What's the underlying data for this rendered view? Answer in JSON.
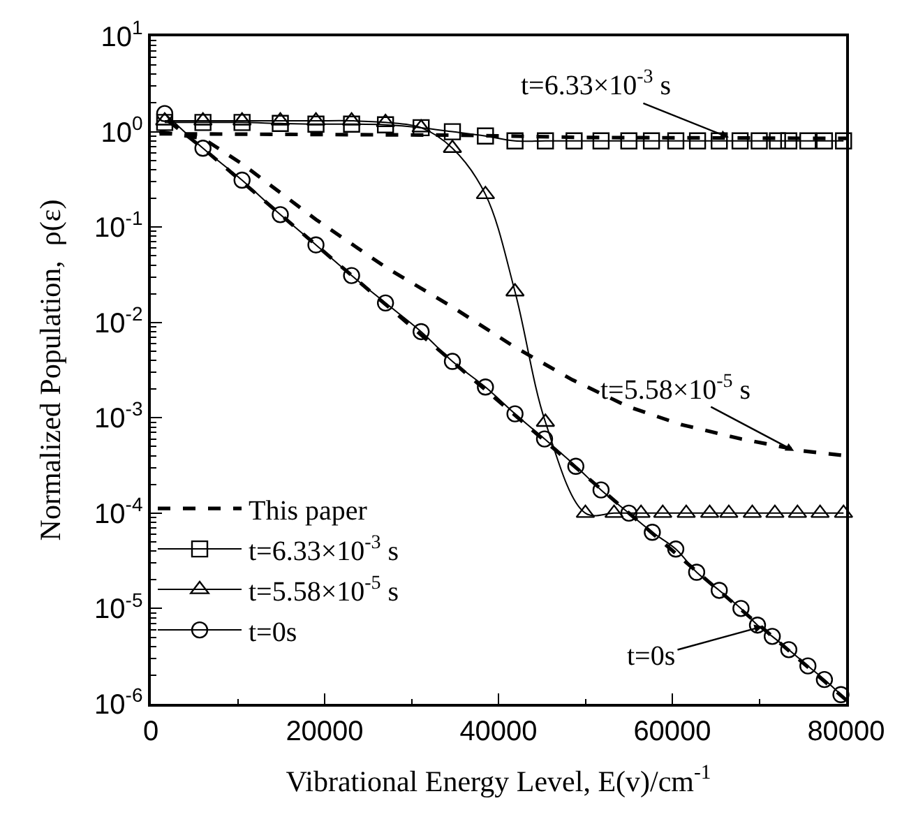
{
  "chart_data": {
    "type": "line",
    "xlabel": "Vibrational Energy Level, E(v)/cm$^{-1}$",
    "ylabel": "Normalized Population,  ρ(ε)",
    "log": "y",
    "legend": "bottom left",
    "grid": false,
    "xlim": [
      0,
      80000
    ],
    "xticks": [
      0,
      {
        "value": 10000,
        "label": null
      },
      20000,
      {
        "value": 30000,
        "label": null
      },
      40000,
      {
        "value": 50000,
        "label": null
      },
      60000,
      {
        "value": 70000,
        "label": null
      },
      80000
    ],
    "ylim": [
      1e-06,
      10
    ],
    "yticks": [
      {
        "value": 1e-06,
        "label": "10$^{-6}$"
      },
      {
        "value": 1e-05,
        "label": "10$^{-5}$"
      },
      {
        "value": 0.0001,
        "label": "10$^{-4}$"
      },
      {
        "value": 0.001,
        "label": "10$^{-3}$"
      },
      {
        "value": 0.01,
        "label": "10$^{-2}$"
      },
      {
        "value": 0.1,
        "label": "10$^{-1}$"
      },
      {
        "value": 1,
        "label": "10$^{0}$"
      },
      {
        "value": 10,
        "label": "10$^{1}$"
      },
      {
        "value": 2e-06,
        "label": null
      },
      {
        "value": 3e-06,
        "label": null
      },
      {
        "value": 4e-06,
        "label": null
      },
      {
        "value": 5e-06,
        "label": null
      },
      {
        "value": 6e-06,
        "label": null
      },
      {
        "value": 7e-06,
        "label": null
      },
      {
        "value": 8e-06,
        "label": null
      },
      {
        "value": 9e-06,
        "label": null
      },
      {
        "value": 2e-05,
        "label": null
      },
      {
        "value": 3e-05,
        "label": null
      },
      {
        "value": 4e-05,
        "label": null
      },
      {
        "value": 5e-05,
        "label": null
      },
      {
        "value": 6e-05,
        "label": null
      },
      {
        "value": 7e-05,
        "label": null
      },
      {
        "value": 8e-05,
        "label": null
      },
      {
        "value": 9e-05,
        "label": null
      },
      {
        "value": 0.0002,
        "label": null
      },
      {
        "value": 0.0003,
        "label": null
      },
      {
        "value": 0.0004,
        "label": null
      },
      {
        "value": 0.0005,
        "label": null
      },
      {
        "value": 0.0006,
        "label": null
      },
      {
        "value": 0.0007,
        "label": null
      },
      {
        "value": 0.0008,
        "label": null
      },
      {
        "value": 0.0009,
        "label": null
      },
      {
        "value": 0.002,
        "label": null
      },
      {
        "value": 0.003,
        "label": null
      },
      {
        "value": 0.004,
        "label": null
      },
      {
        "value": 0.005,
        "label": null
      },
      {
        "value": 0.006,
        "label": null
      },
      {
        "value": 0.007,
        "label": null
      },
      {
        "value": 0.008,
        "label": null
      },
      {
        "value": 0.009,
        "label": null
      },
      {
        "value": 0.02,
        "label": null
      },
      {
        "value": 0.03,
        "label": null
      },
      {
        "value": 0.04,
        "label": null
      },
      {
        "value": 0.05,
        "label": null
      },
      {
        "value": 0.06,
        "label": null
      },
      {
        "value": 0.07,
        "label": null
      },
      {
        "value": 0.08,
        "label": null
      },
      {
        "value": 0.09,
        "label": null
      },
      {
        "value": 0.2,
        "label": null
      },
      {
        "value": 0.3,
        "label": null
      },
      {
        "value": 0.4,
        "label": null
      },
      {
        "value": 0.5,
        "label": null
      },
      {
        "value": 0.6,
        "label": null
      },
      {
        "value": 0.7,
        "label": null
      },
      {
        "value": 0.8,
        "label": null
      },
      {
        "value": 0.9,
        "label": null
      },
      {
        "value": 2,
        "label": null
      },
      {
        "value": 3,
        "label": null
      },
      {
        "value": 4,
        "label": null
      },
      {
        "value": 5,
        "label": null
      },
      {
        "value": 6,
        "label": null
      },
      {
        "value": 7,
        "label": null
      },
      {
        "value": 8,
        "label": null
      },
      {
        "value": 9,
        "label": null
      }
    ],
    "series": [
      {
        "name": "This paper",
        "color": "#000000",
        "line_style": "dashed",
        "marker": "none",
        "x": [
          2000,
          6000,
          40000,
          80000
        ],
        "values": [
          1.3,
          0.67,
          0.0015,
          1.1e-06
        ]
      },
      {
        "color": "#000000",
        "line_style": "dashed",
        "marker": "none",
        "x": [
          1000,
          6000,
          10500,
          19000,
          27000,
          34700,
          41900,
          48500,
          55000,
          61000,
          67900,
          75000,
          80000
        ],
        "values": [
          1.0,
          0.85,
          0.46,
          0.12,
          0.038,
          0.0145,
          0.0055,
          0.0025,
          0.0013,
          0.00085,
          0.0006,
          0.00045,
          0.0004
        ]
      },
      {
        "color": "#000000",
        "line_style": "dashed",
        "marker": "none",
        "x": [
          1000,
          35000,
          50000,
          80000
        ],
        "values": [
          0.95,
          0.92,
          0.87,
          0.85
        ]
      },
      {
        "name": "t=6.33×10$^{-3}$ s",
        "color": "#000000",
        "line_style": "solid",
        "marker": "square",
        "x": [
          1600,
          6000,
          10500,
          14900,
          19000,
          23100,
          27000,
          31100,
          34700,
          38500,
          41900,
          45400,
          48700,
          51800,
          55000,
          57600,
          60400,
          62900,
          65400,
          67800,
          70000,
          72100,
          73400,
          75600,
          77500,
          79700
        ],
        "values": [
          1.25,
          1.25,
          1.25,
          1.22,
          1.2,
          1.2,
          1.18,
          1.1,
          1.0,
          0.9,
          0.8,
          0.8,
          0.8,
          0.8,
          0.8,
          0.8,
          0.8,
          0.8,
          0.8,
          0.8,
          0.8,
          0.8,
          0.8,
          0.8,
          0.8,
          0.8
        ]
      },
      {
        "name": "t=5.58×10$^{-5}$ s",
        "color": "#000000",
        "line_style": "solid",
        "marker": "triangle",
        "x": [
          1600,
          6000,
          10500,
          14900,
          19000,
          23100,
          27000,
          31100,
          34700,
          38500,
          41900,
          45400,
          50000,
          53300,
          56400,
          58900,
          61600,
          64300,
          66500,
          69200,
          71800,
          74400,
          77000,
          79700
        ],
        "values": [
          1.3,
          1.3,
          1.3,
          1.3,
          1.3,
          1.3,
          1.25,
          1.1,
          0.67,
          0.22,
          0.021,
          0.0009,
          0.0001,
          0.0001,
          0.0001,
          0.0001,
          0.0001,
          0.0001,
          0.0001,
          0.0001,
          0.0001,
          0.0001,
          0.0001,
          0.0001
        ]
      },
      {
        "name": "t=0s",
        "color": "#000000",
        "line_style": "solid",
        "marker": "circle",
        "x": [
          1600,
          6000,
          10500,
          14900,
          19000,
          23100,
          27000,
          31100,
          34700,
          38500,
          41900,
          45300,
          48900,
          51800,
          55000,
          57700,
          60400,
          62800,
          65400,
          67900,
          69800,
          71500,
          73400,
          75600,
          77500,
          79400
        ],
        "values": [
          1.55,
          0.67,
          0.31,
          0.135,
          0.065,
          0.031,
          0.016,
          0.008,
          0.0039,
          0.0021,
          0.0011,
          0.0006,
          0.00031,
          0.000175,
          0.0001,
          6.3e-05,
          4.2e-05,
          2.4e-05,
          1.55e-05,
          1e-05,
          6.7e-06,
          5.1e-06,
          3.7e-06,
          2.5e-06,
          1.8e-06,
          1.25e-06
        ]
      }
    ],
    "annotations": [
      {
        "text": "t=6.33×10$^{-3}$ s",
        "x": 66500,
        "y": 0.87
      },
      {
        "text": "t=5.58×10$^{-5}$ s",
        "x": 74000,
        "y": 0.00045
      },
      {
        "text": "t=0s",
        "x": 70400,
        "y": 6.5e-06
      }
    ]
  }
}
